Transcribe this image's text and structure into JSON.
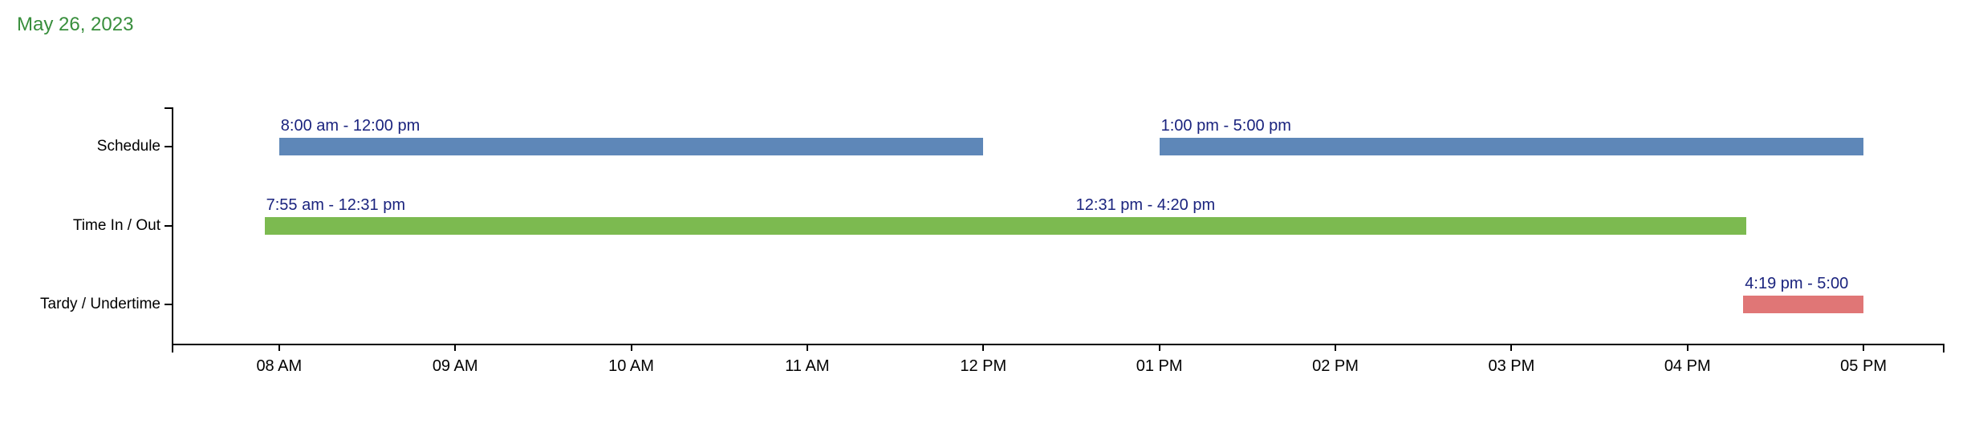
{
  "chart_data": {
    "type": "timeline",
    "title": "May 26, 2023",
    "colors": {
      "title": "#388e3c",
      "bar_label": "#1a237e",
      "axis": "#000000"
    },
    "x_axis": {
      "min": 7.39,
      "max": 17.46,
      "ticks": [
        {
          "hour": 8,
          "label": "08 AM"
        },
        {
          "hour": 9,
          "label": "09 AM"
        },
        {
          "hour": 10,
          "label": "10 AM"
        },
        {
          "hour": 11,
          "label": "11 AM"
        },
        {
          "hour": 12,
          "label": "12 PM"
        },
        {
          "hour": 13,
          "label": "01 PM"
        },
        {
          "hour": 14,
          "label": "02 PM"
        },
        {
          "hour": 15,
          "label": "03 PM"
        },
        {
          "hour": 16,
          "label": "04 PM"
        },
        {
          "hour": 17,
          "label": "05 PM"
        }
      ]
    },
    "rows": [
      {
        "label": "Schedule",
        "color": "#5e87b8",
        "bars": [
          {
            "label": "8:00 am - 12:00 pm",
            "start": 8.0,
            "end": 12.0
          },
          {
            "label": "1:00 pm - 5:00 pm",
            "start": 13.0,
            "end": 17.0
          }
        ]
      },
      {
        "label": "Time In / Out",
        "color": "#7cba50",
        "bars": [
          {
            "label": "7:55 am - 12:31 pm",
            "start": 7.917,
            "end": 12.517
          },
          {
            "label": "12:31 pm - 4:20 pm",
            "start": 12.517,
            "end": 16.333
          }
        ]
      },
      {
        "label": "Tardy / Undertime",
        "color": "#e07676",
        "bars": [
          {
            "label": "4:19 pm - 5:00",
            "start": 16.317,
            "end": 17.0
          }
        ]
      }
    ]
  }
}
